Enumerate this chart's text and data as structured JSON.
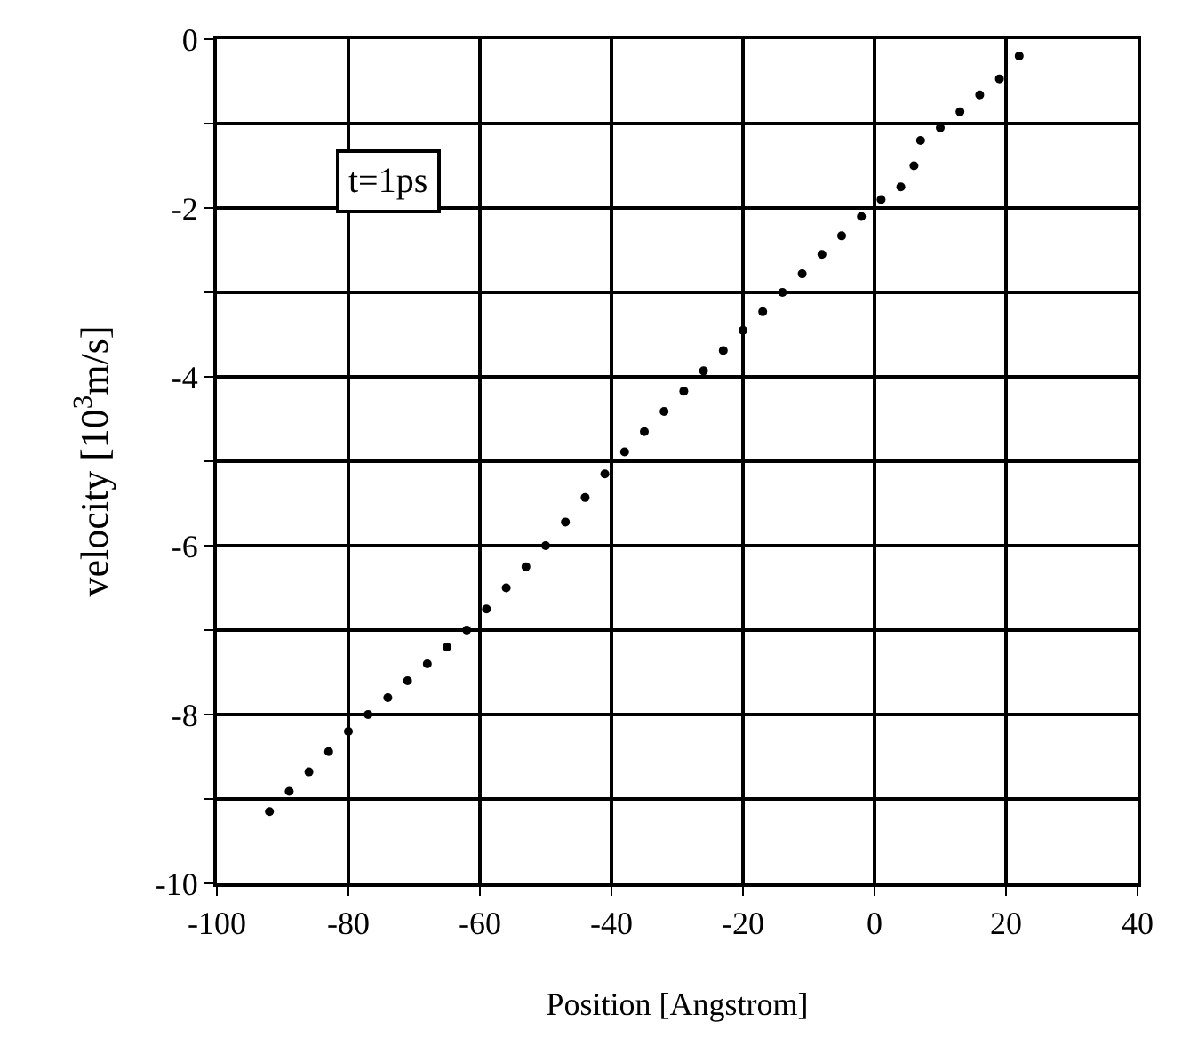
{
  "chart_data": {
    "type": "scatter",
    "xlabel": "Position [Angstrom]",
    "ylabel": "velocity [10$^{3}$m/s]",
    "annotations": [
      "t=1ps"
    ],
    "x": [
      -92,
      -89,
      -86,
      -83,
      -80,
      -77,
      -74,
      -71,
      -68,
      -65,
      -62,
      -59,
      -56,
      -53,
      -50,
      -47,
      -44,
      -41,
      -38,
      -35,
      -32,
      -29,
      -26,
      -23,
      -20,
      -17,
      -14,
      -11,
      -8,
      -5,
      -2,
      1,
      4,
      6,
      7,
      10,
      13,
      16,
      19,
      22
    ],
    "series": [
      {
        "color": "#000000",
        "values": [
          -9.15,
          -8.91,
          -8.68,
          -8.44,
          -8.2,
          -8.0,
          -7.8,
          -7.6,
          -7.4,
          -7.2,
          -7.0,
          -6.75,
          -6.5,
          -6.25,
          -6.0,
          -5.72,
          -5.43,
          -5.15,
          -4.89,
          -4.65,
          -4.41,
          -4.17,
          -3.93,
          -3.69,
          -3.45,
          -3.23,
          -3.0,
          -2.78,
          -2.55,
          -2.33,
          -2.1,
          -1.9,
          -1.75,
          -1.5,
          -1.2,
          -1.05,
          -0.86,
          -0.66,
          -0.47,
          -0.2
        ]
      }
    ],
    "xlim": [
      -100,
      40
    ],
    "xticks": [
      -100,
      -80,
      -60,
      -40,
      -20,
      0,
      20,
      40
    ],
    "ylim": [
      -10,
      0
    ],
    "yticks": [
      -10,
      {
        "value": -9,
        "label": null
      },
      -8,
      {
        "value": -7,
        "label": null
      },
      -6,
      {
        "value": -5,
        "label": null
      },
      -4,
      {
        "value": -3,
        "label": null
      },
      -2,
      {
        "value": -1,
        "label": null
      },
      0
    ],
    "grid": true,
    "marker": "circle"
  }
}
